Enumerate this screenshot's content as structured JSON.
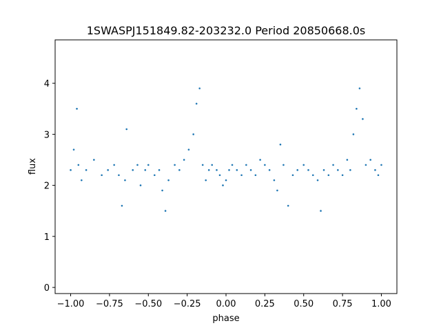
{
  "chart_data": {
    "type": "scatter",
    "title": "1SWASPJ151849.82-203232.0 Period 20850668.0s",
    "xlabel": "phase",
    "ylabel": "flux",
    "xlim": [
      -1.1,
      1.1
    ],
    "ylim": [
      -0.12,
      4.85
    ],
    "xticks": [
      -1.0,
      -0.75,
      -0.5,
      -0.25,
      0.0,
      0.25,
      0.5,
      0.75,
      1.0
    ],
    "xtick_labels": [
      "−1.00",
      "−0.75",
      "−0.50",
      "−0.25",
      "0.00",
      "0.25",
      "0.50",
      "0.75",
      "1.00"
    ],
    "yticks": [
      0,
      1,
      2,
      3,
      4
    ],
    "ytick_labels": [
      "0",
      "1",
      "2",
      "3",
      "4"
    ],
    "grid": false,
    "marker_color": "#1f77b4",
    "series": [
      {
        "x": [
          -1.0,
          -0.98,
          -0.96,
          -0.95,
          -0.93,
          -0.9,
          -0.85,
          -0.8,
          -0.76,
          -0.72,
          -0.69,
          -0.67,
          -0.65,
          -0.64,
          -0.6,
          -0.57,
          -0.55,
          -0.52,
          -0.5,
          -0.46,
          -0.43,
          -0.41,
          -0.39,
          -0.37,
          -0.33,
          -0.3,
          -0.27,
          -0.24,
          -0.21,
          -0.19,
          -0.17,
          -0.15,
          -0.13,
          -0.11,
          -0.09,
          -0.06,
          -0.04,
          -0.02,
          0.0,
          0.02,
          0.04,
          0.07,
          0.1,
          0.13,
          0.16,
          0.19,
          0.22,
          0.25,
          0.28,
          0.31,
          0.33,
          0.35,
          0.37,
          0.4,
          0.43,
          0.46,
          0.5,
          0.53,
          0.56,
          0.59,
          0.61,
          0.63,
          0.66,
          0.69,
          0.72,
          0.75,
          0.78,
          0.8,
          0.82,
          0.84,
          0.86,
          0.88,
          0.9,
          0.93,
          0.96,
          0.98,
          1.0
        ],
        "y": [
          2.3,
          2.7,
          3.5,
          2.4,
          2.1,
          2.3,
          2.5,
          2.2,
          2.3,
          2.4,
          2.2,
          1.6,
          2.1,
          3.1,
          2.3,
          2.4,
          2.0,
          2.3,
          2.4,
          2.2,
          2.3,
          1.9,
          1.5,
          2.1,
          2.4,
          2.3,
          2.5,
          2.7,
          3.0,
          3.6,
          3.9,
          2.4,
          2.1,
          2.3,
          2.4,
          2.3,
          2.2,
          2.0,
          2.1,
          2.3,
          2.4,
          2.3,
          2.2,
          2.4,
          2.3,
          2.2,
          2.5,
          2.4,
          2.3,
          2.1,
          1.9,
          2.8,
          2.4,
          1.6,
          2.2,
          2.3,
          2.4,
          2.3,
          2.2,
          2.1,
          1.5,
          2.3,
          2.2,
          2.4,
          2.3,
          2.2,
          2.5,
          2.3,
          3.0,
          3.5,
          3.9,
          3.3,
          2.4,
          2.5,
          2.3,
          2.2,
          2.4
        ]
      }
    ]
  }
}
